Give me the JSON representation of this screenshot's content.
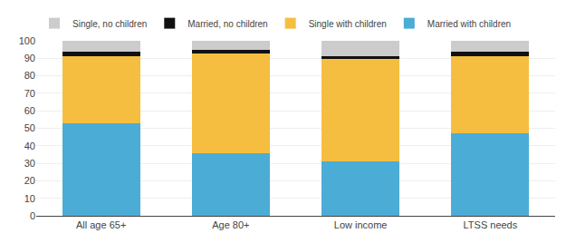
{
  "chart_data": {
    "type": "bar",
    "stacked": true,
    "categories": [
      "All age 65+",
      "Age 80+",
      "Low income",
      "LTSS needs"
    ],
    "series": [
      {
        "name": "Married with children",
        "color": "#4BACD6",
        "values": [
          53,
          36,
          31,
          47
        ]
      },
      {
        "name": "Single with children",
        "color": "#F5BE41",
        "values": [
          38,
          57,
          59,
          44
        ]
      },
      {
        "name": "Married, no children",
        "color": "#111111",
        "values": [
          3,
          2,
          1,
          3
        ]
      },
      {
        "name": "Single, no children",
        "color": "#CCCCCC",
        "values": [
          6,
          5,
          9,
          6
        ]
      }
    ],
    "ylim": [
      0,
      100
    ],
    "yticks": [
      0,
      10,
      20,
      30,
      40,
      50,
      60,
      70,
      80,
      90,
      100
    ],
    "grid": true,
    "legend": "top left"
  }
}
